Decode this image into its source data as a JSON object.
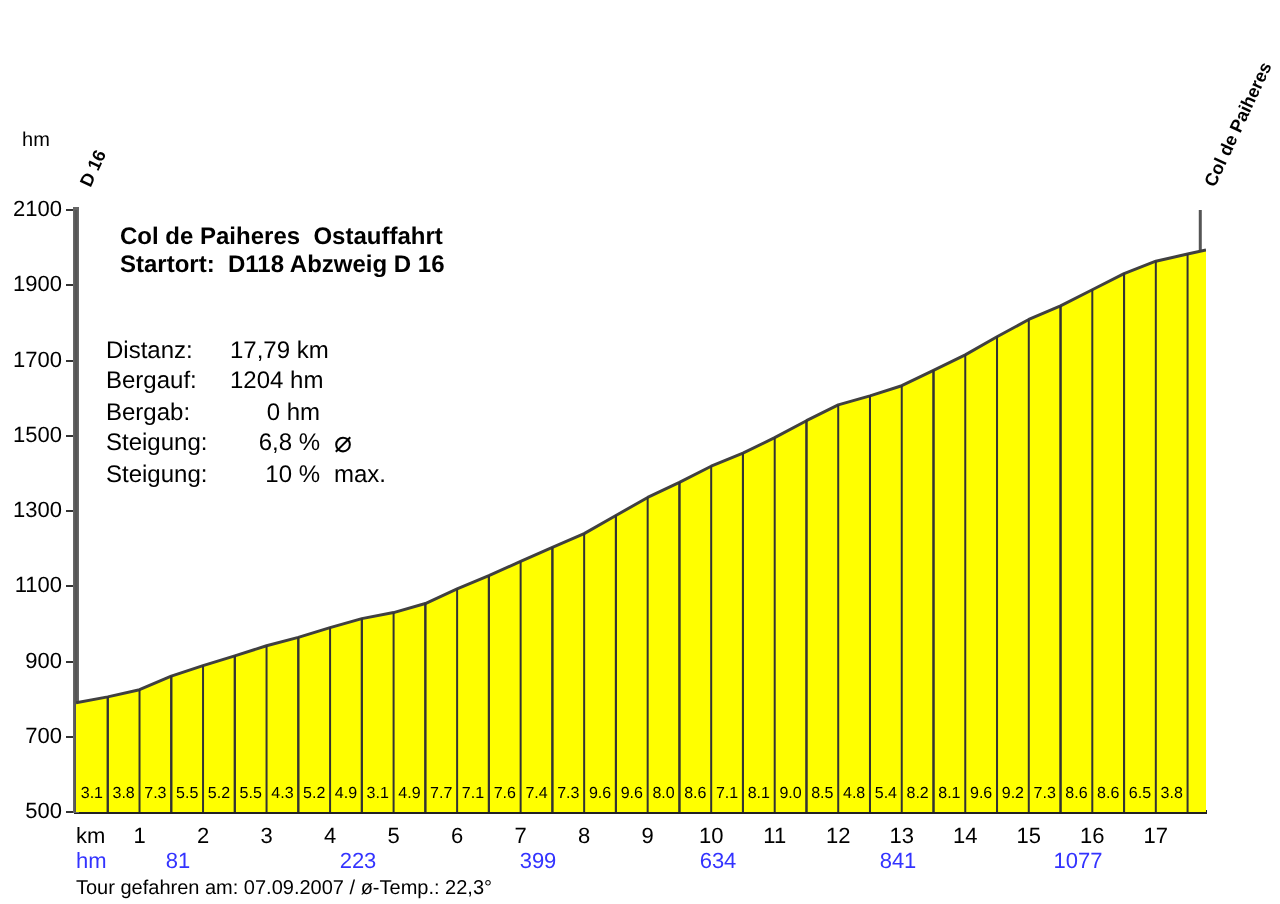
{
  "chart_data": {
    "type": "area",
    "title": "Col de Paiheres  Ostauffahrt",
    "subtitle": "Startort:  D118 Abzweig D 16",
    "xlabel": "km",
    "ylabel": "hm",
    "x": [
      0,
      0.5,
      1,
      1.5,
      2,
      2.5,
      3,
      3.5,
      4,
      4.5,
      5,
      5.5,
      6,
      6.5,
      7,
      7.5,
      8,
      8.5,
      9,
      9.5,
      10,
      10.5,
      11,
      11.5,
      12,
      12.5,
      13,
      13.5,
      14,
      14.5,
      15,
      15.5,
      16,
      16.5,
      17,
      17.5,
      17.79
    ],
    "values": [
      790,
      806,
      825,
      861,
      889,
      915,
      942,
      964,
      990,
      1014,
      1030,
      1054,
      1093,
      1128,
      1166,
      1203,
      1240,
      1288,
      1336,
      1376,
      1419,
      1454,
      1495,
      1540,
      1582,
      1606,
      1633,
      1674,
      1715,
      1763,
      1809,
      1845,
      1888,
      1931,
      1964,
      1983,
      1994
    ],
    "color": "#ffff00",
    "xlim": [
      0,
      17.79
    ],
    "xticks": [
      1,
      2,
      3,
      4,
      5,
      6,
      7,
      8,
      9,
      10,
      11,
      12,
      13,
      14,
      15,
      16,
      17
    ],
    "ylim": [
      500,
      2100
    ],
    "yticks": [
      500,
      700,
      900,
      1100,
      1300,
      1500,
      1700,
      1900,
      2100
    ],
    "grid": "x",
    "ref_lines": [
      {
        "axis": "x",
        "value": 0,
        "label": "D 16",
        "color": "#555555"
      },
      {
        "axis": "x",
        "value": 17.7,
        "label": "Col de Paiheres",
        "color": "#555555"
      }
    ],
    "annotations": [
      "Distanz:",
      "17,79 km",
      "Bergauf:",
      "1204 hm",
      "Bergab:",
      "0 hm",
      "Steigung:",
      "6,8 %",
      "⌀",
      "Steigung:",
      "10 %",
      "max.",
      "Tour gefahren am: 07.09.2007 / ø-Temp.: 22,3°",
      "hm",
      "81",
      "223",
      "399",
      "634",
      "841",
      "1077",
      {
        "text": "3.1",
        "x": 0.5,
        "y": 806
      },
      {
        "text": "3.8",
        "x": 0.5,
        "y": 806
      },
      {
        "text": "7.3",
        "x": 1.5,
        "y": 861
      },
      {
        "text": "5.5",
        "x": 1.5,
        "y": 861
      },
      {
        "text": "5.2",
        "x": 2.5,
        "y": 915
      },
      {
        "text": "5.5",
        "x": 2.5,
        "y": 915
      },
      {
        "text": "4.3",
        "x": 3.5,
        "y": 964
      },
      {
        "text": "5.2",
        "x": 3.5,
        "y": 964
      },
      {
        "text": "4.9",
        "x": 4.5,
        "y": 1014
      },
      {
        "text": "3.1",
        "x": 4.5,
        "y": 1014
      },
      {
        "text": "4.9",
        "x": 5.5,
        "y": 1054
      },
      {
        "text": "7.7",
        "x": 5.5,
        "y": 1054
      },
      {
        "text": "7.1",
        "x": 6.5,
        "y": 1128
      },
      {
        "text": "7.6",
        "x": 6.5,
        "y": 1128
      },
      {
        "text": "7.4",
        "x": 7.5,
        "y": 1203
      },
      {
        "text": "7.3",
        "x": 7.5,
        "y": 1203
      },
      {
        "text": "9.6",
        "x": 8.5,
        "y": 1288
      },
      {
        "text": "9.6",
        "x": 8.5,
        "y": 1288
      },
      {
        "text": "8.0",
        "x": 9.5,
        "y": 1376
      },
      {
        "text": "8.6",
        "x": 9.5,
        "y": 1376
      },
      {
        "text": "7.1",
        "x": 10.5,
        "y": 1454
      },
      {
        "text": "8.1",
        "x": 10.5,
        "y": 1454
      },
      {
        "text": "9.0",
        "x": 11.5,
        "y": 1540
      },
      {
        "text": "8.5",
        "x": 11.5,
        "y": 1540
      },
      {
        "text": "4.8",
        "x": 12.5,
        "y": 1606
      },
      {
        "text": "5.4",
        "x": 12.5,
        "y": 1606
      },
      {
        "text": "8.2",
        "x": 13.5,
        "y": 1674
      },
      {
        "text": "8.1",
        "x": 13.5,
        "y": 1674
      },
      {
        "text": "9.6",
        "x": 14.5,
        "y": 1763
      },
      {
        "text": "9.2",
        "x": 14.5,
        "y": 1763
      },
      {
        "text": "7.3",
        "x": 15.5,
        "y": 1845
      },
      {
        "text": "8.6",
        "x": 15.5,
        "y": 1845
      },
      {
        "text": "8.6",
        "x": 16.5,
        "y": 1931
      },
      {
        "text": "6.5",
        "x": 16.5,
        "y": 1931
      },
      {
        "text": "3.8",
        "x": 17.5,
        "y": 1983
      }
    ]
  }
}
